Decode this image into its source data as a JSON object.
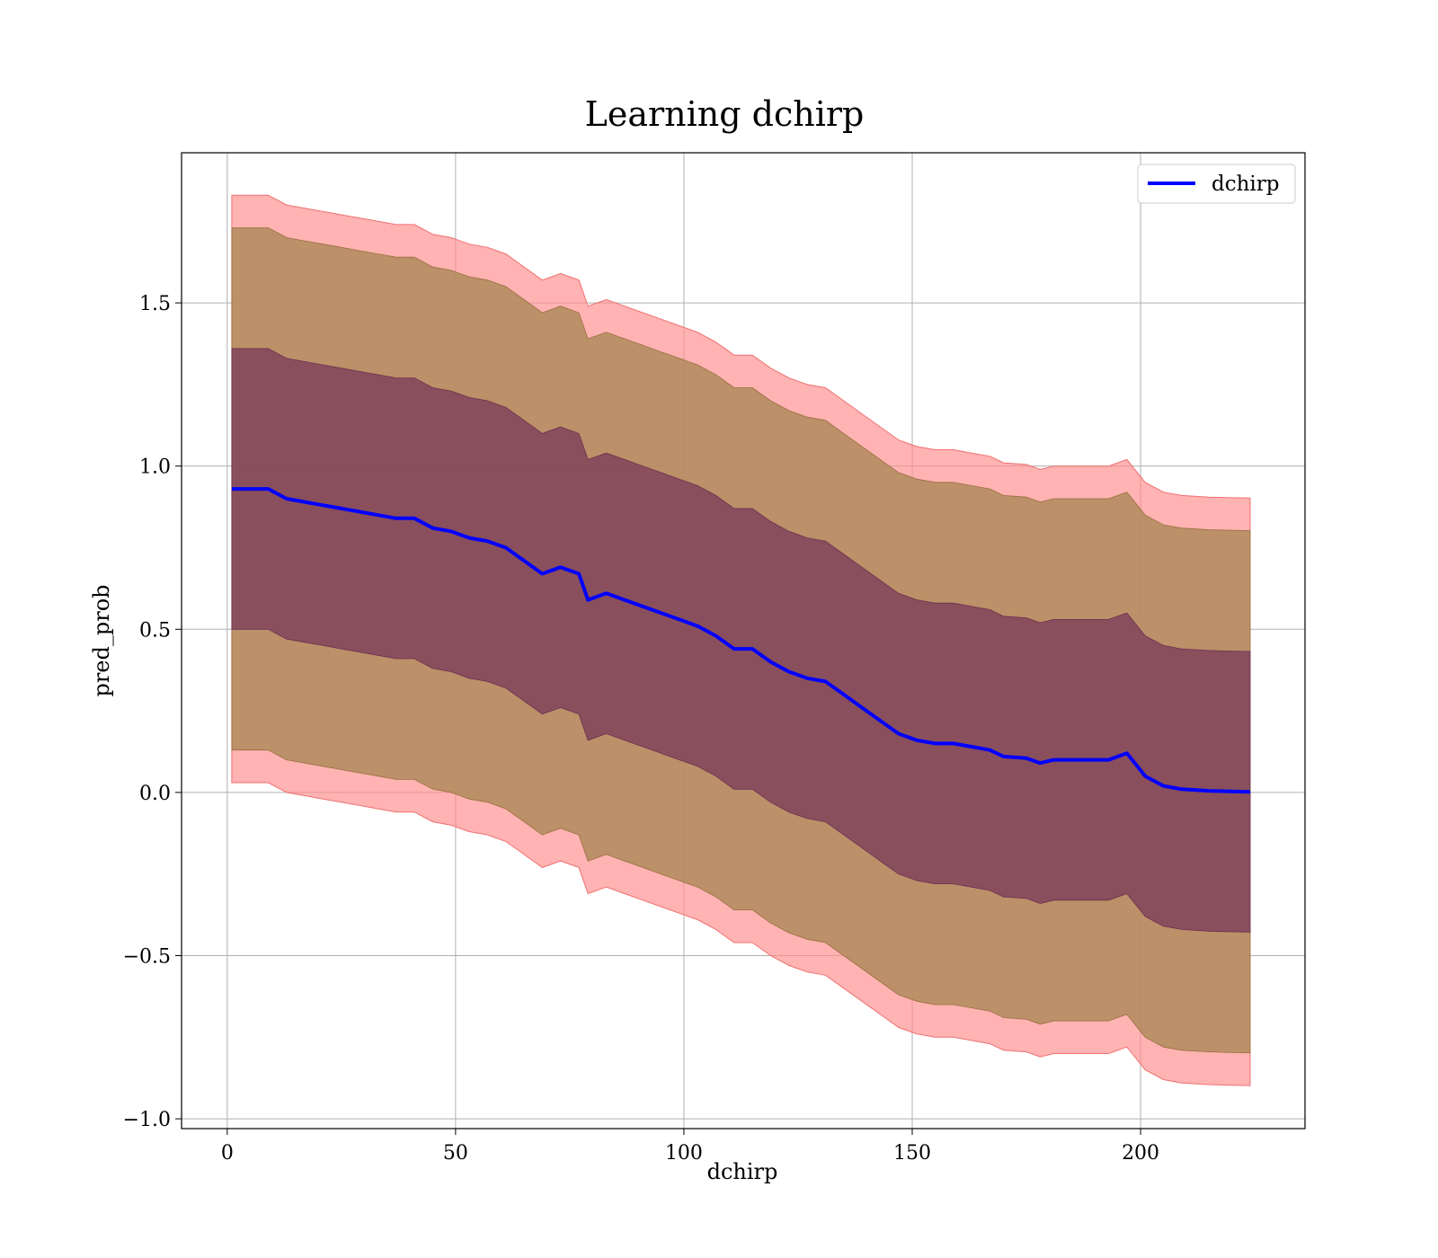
{
  "chart_data": {
    "type": "area",
    "title": "Learning dchirp",
    "xlabel": "dchirp",
    "ylabel": "pred_prob",
    "xlim": [
      -10,
      236
    ],
    "ylim": [
      -1.03,
      1.96
    ],
    "xticks": [
      0,
      50,
      100,
      150,
      200
    ],
    "xtick_labels": [
      "0",
      "50",
      "100",
      "150",
      "200"
    ],
    "yticks": [
      -1.0,
      -0.5,
      0.0,
      0.5,
      1.0,
      1.5
    ],
    "ytick_labels": [
      "−1.0",
      "−0.5",
      "0.0",
      "0.5",
      "1.0",
      "1.5"
    ],
    "grid": true,
    "legend_position": "top-right",
    "legend": [
      "dchirp"
    ],
    "colors": {
      "line": "#0000ff",
      "band_outer": "#ff8a8a",
      "band_middle": "#b08a5a",
      "band_inner": "#7a3a5a"
    },
    "series": [
      {
        "name": "dchirp",
        "x": [
          1,
          5,
          9,
          13,
          17,
          21,
          25,
          29,
          33,
          37,
          41,
          45,
          49,
          53,
          57,
          61,
          65,
          69,
          73,
          77,
          79,
          83,
          87,
          91,
          95,
          99,
          103,
          107,
          111,
          115,
          119,
          123,
          127,
          131,
          135,
          139,
          143,
          147,
          151,
          155,
          159,
          163,
          167,
          170,
          175,
          178,
          181,
          185,
          190,
          193,
          197,
          201,
          205,
          209,
          215,
          220,
          224
        ],
        "y": [
          0.93,
          0.93,
          0.93,
          0.9,
          0.89,
          0.88,
          0.87,
          0.86,
          0.85,
          0.84,
          0.84,
          0.81,
          0.8,
          0.78,
          0.77,
          0.75,
          0.71,
          0.67,
          0.69,
          0.67,
          0.59,
          0.61,
          0.59,
          0.57,
          0.55,
          0.53,
          0.51,
          0.48,
          0.44,
          0.44,
          0.4,
          0.37,
          0.35,
          0.34,
          0.3,
          0.26,
          0.22,
          0.18,
          0.16,
          0.15,
          0.15,
          0.14,
          0.13,
          0.11,
          0.105,
          0.09,
          0.1,
          0.1,
          0.1,
          0.1,
          0.12,
          0.05,
          0.02,
          0.01,
          0.005,
          0.003,
          0.002
        ],
        "band_inner_halfwidth": 0.43,
        "band_middle_halfwidth": 0.8,
        "band_outer_halfwidth": 0.9
      }
    ]
  }
}
